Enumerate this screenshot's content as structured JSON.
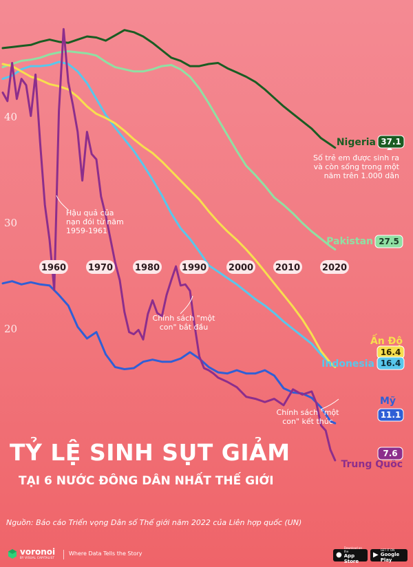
{
  "chart_data": {
    "type": "line",
    "title": "TỶ LỆ SINH SỤT GIẢM",
    "subtitle": "TẠI 6 NƯỚC ĐÔNG DÂN NHẤT THẾ GIỚI",
    "xlabel": "",
    "ylabel": "",
    "x_ticks": [
      1960,
      1970,
      1980,
      1990,
      2000,
      2010,
      2020
    ],
    "y_ticks": [
      20,
      30,
      40
    ],
    "xlim": [
      1950,
      2021
    ],
    "ylim": [
      5,
      48
    ],
    "grid": false,
    "series": [
      {
        "name": "Nigeria",
        "color": "#1a5c22",
        "points": [
          [
            1950,
            46.5
          ],
          [
            1952,
            46.6
          ],
          [
            1954,
            46.7
          ],
          [
            1956,
            46.8
          ],
          [
            1958,
            47.1
          ],
          [
            1960,
            47.3
          ],
          [
            1962,
            47.1
          ],
          [
            1964,
            47.0
          ],
          [
            1966,
            47.3
          ],
          [
            1968,
            47.6
          ],
          [
            1970,
            47.5
          ],
          [
            1972,
            47.2
          ],
          [
            1974,
            47.7
          ],
          [
            1976,
            48.2
          ],
          [
            1978,
            48.0
          ],
          [
            1980,
            47.6
          ],
          [
            1982,
            47.0
          ],
          [
            1984,
            46.3
          ],
          [
            1986,
            45.6
          ],
          [
            1988,
            45.3
          ],
          [
            1990,
            44.8
          ],
          [
            1992,
            44.8
          ],
          [
            1994,
            45.0
          ],
          [
            1996,
            45.1
          ],
          [
            1998,
            44.6
          ],
          [
            2000,
            44.2
          ],
          [
            2002,
            43.8
          ],
          [
            2004,
            43.3
          ],
          [
            2006,
            42.6
          ],
          [
            2008,
            41.8
          ],
          [
            2010,
            41.0
          ],
          [
            2012,
            40.3
          ],
          [
            2014,
            39.6
          ],
          [
            2016,
            38.9
          ],
          [
            2018,
            38.0
          ],
          [
            2020,
            37.4
          ],
          [
            2021,
            37.1
          ]
        ]
      },
      {
        "name": "Pakistan",
        "color": "#8fe0a3",
        "points": [
          [
            1950,
            44.7
          ],
          [
            1952,
            45.0
          ],
          [
            1954,
            45.3
          ],
          [
            1956,
            45.4
          ],
          [
            1958,
            45.6
          ],
          [
            1960,
            45.9
          ],
          [
            1962,
            46.1
          ],
          [
            1964,
            46.2
          ],
          [
            1966,
            46.1
          ],
          [
            1968,
            46.0
          ],
          [
            1970,
            45.8
          ],
          [
            1972,
            45.2
          ],
          [
            1974,
            44.7
          ],
          [
            1976,
            44.5
          ],
          [
            1978,
            44.3
          ],
          [
            1980,
            44.3
          ],
          [
            1982,
            44.5
          ],
          [
            1984,
            44.8
          ],
          [
            1986,
            44.9
          ],
          [
            1988,
            44.5
          ],
          [
            1990,
            43.8
          ],
          [
            1992,
            42.7
          ],
          [
            1994,
            41.3
          ],
          [
            1996,
            39.8
          ],
          [
            1998,
            38.3
          ],
          [
            2000,
            36.8
          ],
          [
            2002,
            35.4
          ],
          [
            2004,
            34.5
          ],
          [
            2006,
            33.5
          ],
          [
            2008,
            32.4
          ],
          [
            2010,
            31.7
          ],
          [
            2012,
            30.9
          ],
          [
            2014,
            30.0
          ],
          [
            2016,
            29.2
          ],
          [
            2018,
            28.5
          ],
          [
            2020,
            27.8
          ],
          [
            2021,
            27.5
          ]
        ]
      },
      {
        "name": "Ấn Độ",
        "color": "#f7df4e",
        "points": [
          [
            1950,
            45.0
          ],
          [
            1952,
            44.8
          ],
          [
            1954,
            44.3
          ],
          [
            1956,
            43.8
          ],
          [
            1958,
            43.5
          ],
          [
            1960,
            43.1
          ],
          [
            1962,
            42.9
          ],
          [
            1964,
            42.6
          ],
          [
            1966,
            41.9
          ],
          [
            1968,
            41.0
          ],
          [
            1970,
            40.3
          ],
          [
            1972,
            39.9
          ],
          [
            1974,
            39.4
          ],
          [
            1976,
            38.7
          ],
          [
            1978,
            37.9
          ],
          [
            1980,
            37.2
          ],
          [
            1982,
            36.6
          ],
          [
            1984,
            35.8
          ],
          [
            1986,
            34.9
          ],
          [
            1988,
            34.0
          ],
          [
            1990,
            33.1
          ],
          [
            1992,
            32.2
          ],
          [
            1994,
            31.1
          ],
          [
            1996,
            30.1
          ],
          [
            1998,
            29.2
          ],
          [
            2000,
            28.4
          ],
          [
            2002,
            27.5
          ],
          [
            2004,
            26.5
          ],
          [
            2006,
            25.4
          ],
          [
            2008,
            24.3
          ],
          [
            2010,
            23.2
          ],
          [
            2012,
            22.1
          ],
          [
            2014,
            20.9
          ],
          [
            2016,
            19.5
          ],
          [
            2018,
            17.9
          ],
          [
            2020,
            16.8
          ],
          [
            2021,
            16.4
          ]
        ]
      },
      {
        "name": "Indonesia",
        "color": "#58c7ec",
        "points": [
          [
            1950,
            43.6
          ],
          [
            1952,
            43.9
          ],
          [
            1954,
            44.5
          ],
          [
            1956,
            44.8
          ],
          [
            1958,
            44.8
          ],
          [
            1960,
            44.9
          ],
          [
            1962,
            45.2
          ],
          [
            1964,
            45.0
          ],
          [
            1966,
            44.3
          ],
          [
            1968,
            43.2
          ],
          [
            1970,
            41.7
          ],
          [
            1972,
            40.2
          ],
          [
            1974,
            39.0
          ],
          [
            1976,
            37.9
          ],
          [
            1978,
            36.8
          ],
          [
            1980,
            35.5
          ],
          [
            1982,
            34.1
          ],
          [
            1984,
            32.6
          ],
          [
            1986,
            30.9
          ],
          [
            1988,
            29.5
          ],
          [
            1990,
            28.5
          ],
          [
            1992,
            27.3
          ],
          [
            1994,
            26.0
          ],
          [
            1996,
            25.4
          ],
          [
            1998,
            24.8
          ],
          [
            2000,
            24.2
          ],
          [
            2002,
            23.5
          ],
          [
            2004,
            22.8
          ],
          [
            2006,
            22.2
          ],
          [
            2008,
            21.5
          ],
          [
            2010,
            20.7
          ],
          [
            2012,
            20.0
          ],
          [
            2014,
            19.3
          ],
          [
            2016,
            18.6
          ],
          [
            2018,
            17.6
          ],
          [
            2020,
            16.7
          ],
          [
            2021,
            16.4
          ]
        ]
      },
      {
        "name": "Mỹ",
        "color": "#2f5fd6",
        "points": [
          [
            1950,
            24.3
          ],
          [
            1952,
            24.5
          ],
          [
            1954,
            24.2
          ],
          [
            1956,
            24.4
          ],
          [
            1958,
            24.2
          ],
          [
            1960,
            24.1
          ],
          [
            1962,
            23.2
          ],
          [
            1964,
            22.2
          ],
          [
            1966,
            20.2
          ],
          [
            1968,
            19.1
          ],
          [
            1970,
            19.7
          ],
          [
            1972,
            17.6
          ],
          [
            1974,
            16.4
          ],
          [
            1976,
            16.2
          ],
          [
            1978,
            16.3
          ],
          [
            1980,
            16.9
          ],
          [
            1982,
            17.1
          ],
          [
            1984,
            16.9
          ],
          [
            1986,
            16.9
          ],
          [
            1988,
            17.2
          ],
          [
            1990,
            17.8
          ],
          [
            1992,
            17.2
          ],
          [
            1994,
            16.4
          ],
          [
            1996,
            15.9
          ],
          [
            1998,
            15.8
          ],
          [
            2000,
            16.1
          ],
          [
            2002,
            15.8
          ],
          [
            2004,
            15.8
          ],
          [
            2006,
            16.1
          ],
          [
            2008,
            15.6
          ],
          [
            2010,
            14.4
          ],
          [
            2012,
            14.0
          ],
          [
            2014,
            13.9
          ],
          [
            2016,
            13.5
          ],
          [
            2018,
            12.6
          ],
          [
            2020,
            11.3
          ],
          [
            2021,
            11.1
          ]
        ]
      },
      {
        "name": "Trung Quốc",
        "color": "#8c2e8c",
        "points": [
          [
            1950,
            42.3
          ],
          [
            1951,
            41.5
          ],
          [
            1952,
            45.1
          ],
          [
            1953,
            41.7
          ],
          [
            1954,
            43.6
          ],
          [
            1955,
            43.0
          ],
          [
            1956,
            40.1
          ],
          [
            1957,
            44.0
          ],
          [
            1958,
            37.5
          ],
          [
            1959,
            31.7
          ],
          [
            1960,
            28.4
          ],
          [
            1961,
            23.7
          ],
          [
            1962,
            40.6
          ],
          [
            1963,
            48.3
          ],
          [
            1964,
            43.3
          ],
          [
            1965,
            41.1
          ],
          [
            1966,
            38.6
          ],
          [
            1967,
            34.0
          ],
          [
            1968,
            38.6
          ],
          [
            1969,
            36.5
          ],
          [
            1970,
            36.0
          ],
          [
            1971,
            32.5
          ],
          [
            1972,
            30.7
          ],
          [
            1973,
            28.5
          ],
          [
            1974,
            26.3
          ],
          [
            1975,
            24.6
          ],
          [
            1976,
            21.6
          ],
          [
            1977,
            19.7
          ],
          [
            1978,
            19.5
          ],
          [
            1979,
            19.9
          ],
          [
            1980,
            19.0
          ],
          [
            1981,
            21.4
          ],
          [
            1982,
            22.7
          ],
          [
            1983,
            21.5
          ],
          [
            1984,
            21.2
          ],
          [
            1985,
            23.2
          ],
          [
            1986,
            24.6
          ],
          [
            1987,
            25.9
          ],
          [
            1988,
            24.1
          ],
          [
            1989,
            24.2
          ],
          [
            1990,
            23.6
          ],
          [
            1991,
            20.3
          ],
          [
            1992,
            17.4
          ],
          [
            1993,
            16.3
          ],
          [
            1994,
            16.1
          ],
          [
            1995,
            15.8
          ],
          [
            1996,
            15.4
          ],
          [
            1997,
            15.2
          ],
          [
            1998,
            15.0
          ],
          [
            2000,
            14.5
          ],
          [
            2002,
            13.6
          ],
          [
            2004,
            13.4
          ],
          [
            2006,
            13.1
          ],
          [
            2008,
            13.4
          ],
          [
            2010,
            12.8
          ],
          [
            2012,
            14.3
          ],
          [
            2014,
            13.8
          ],
          [
            2016,
            14.1
          ],
          [
            2017,
            13.0
          ],
          [
            2018,
            10.9
          ],
          [
            2019,
            10.4
          ],
          [
            2020,
            8.6
          ],
          [
            2021,
            7.6
          ]
        ]
      }
    ],
    "series_labels": [
      {
        "name": "Nigeria",
        "value": "37.1"
      },
      {
        "name": "Pakistan",
        "value": "27.5"
      },
      {
        "name": "Ấn Độ",
        "value": "16.4"
      },
      {
        "name": "Indonesia",
        "value": "16.4"
      },
      {
        "name": "Mỹ",
        "value": "11.1"
      },
      {
        "name": "Trung Quốc",
        "value": "7.6"
      }
    ],
    "annotations": [
      {
        "id": "famine",
        "lines": [
          "Hậu quả của",
          "nạn đói từ năm",
          "1959-1961"
        ]
      },
      {
        "id": "one-child-start",
        "lines": [
          "Chính sách \"một",
          "con\" bắt đầu"
        ]
      },
      {
        "id": "one-child-end",
        "lines": [
          "Chính sách \"một",
          "con\" kết thúc"
        ]
      },
      {
        "id": "unit-note",
        "lines": [
          "Số trẻ em được sinh ra",
          "và còn sống trong một",
          "năm trên 1.000 dân"
        ]
      }
    ]
  },
  "source": "Nguồn: Báo cáo Triển vọng Dân số Thế giới năm 2022 của Liên hợp quốc (UN)",
  "footer": {
    "brand": "voronoi",
    "brand_sub": "BY VISUAL CAPITALIST",
    "tagline": "Where Data Tells the Story",
    "app_store_small": "Download on the",
    "app_store": "App Store",
    "google_play_small": "GET IT ON",
    "google_play": "Google Play"
  }
}
